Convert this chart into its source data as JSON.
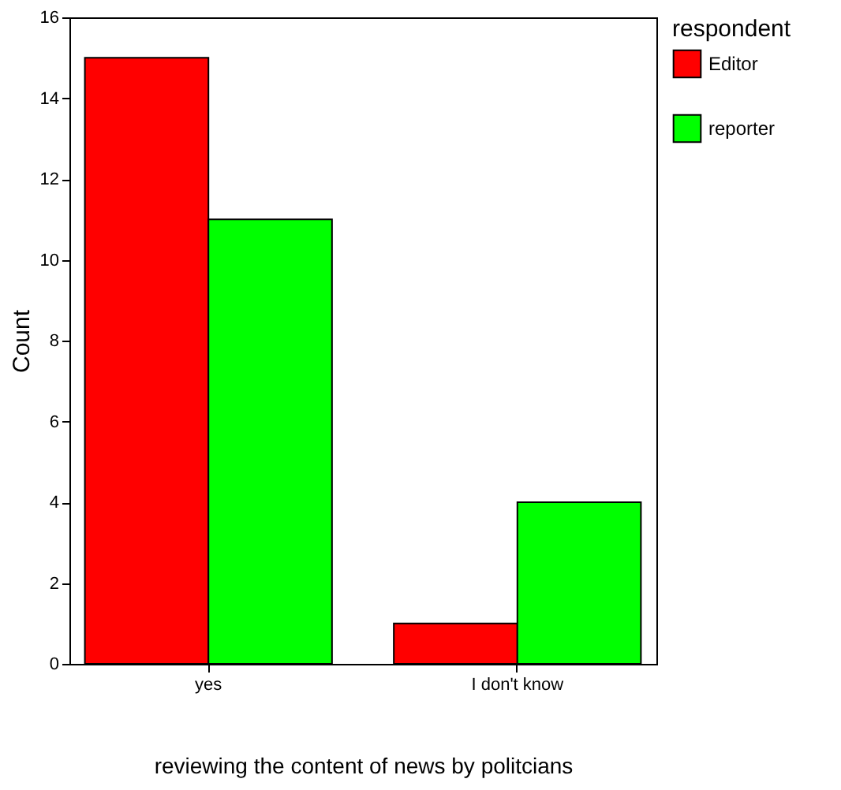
{
  "chart_data": {
    "type": "bar",
    "categories": [
      "yes",
      "I don't know"
    ],
    "series": [
      {
        "name": "Editor",
        "color": "#ff0000",
        "values": [
          15,
          1
        ]
      },
      {
        "name": "reporter",
        "color": "#00ff00",
        "values": [
          11,
          4
        ]
      }
    ],
    "xlabel": "reviewing the content of news by politcians",
    "ylabel": "Count",
    "legend_title": "respondent",
    "ylim": [
      0,
      16
    ],
    "yticks": [
      0,
      2,
      4,
      6,
      8,
      10,
      12,
      14,
      16
    ],
    "grid": false,
    "legend": "right"
  }
}
